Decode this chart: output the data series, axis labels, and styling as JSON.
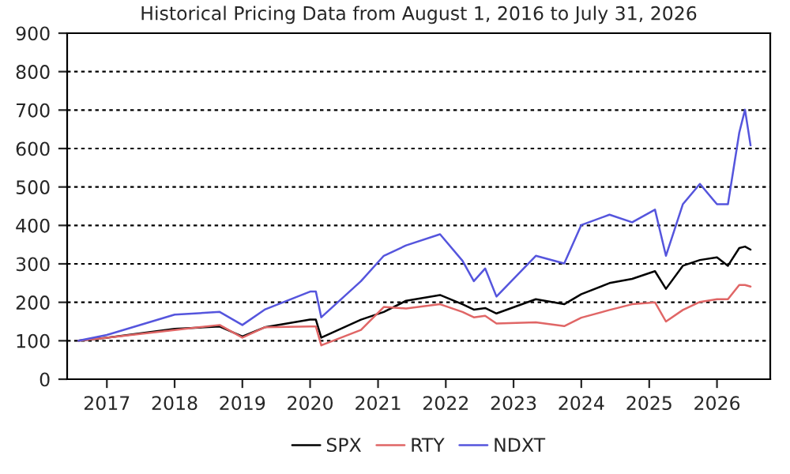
{
  "chart_data": {
    "type": "line",
    "title": "Historical Pricing Data from August 1, 2016 to July 31, 2026",
    "x": [
      "2016-08",
      "2017-01",
      "2018-01",
      "2018-09",
      "2019-01",
      "2019-05",
      "2020-01",
      "2020-02",
      "2020-03",
      "2020-10",
      "2021-02",
      "2021-06",
      "2021-12",
      "2022-04",
      "2022-06",
      "2022-08",
      "2022-10",
      "2023-05",
      "2023-10",
      "2024-01",
      "2024-06",
      "2024-10",
      "2025-02",
      "2025-04",
      "2025-07",
      "2025-10",
      "2026-01",
      "2026-03",
      "2026-05",
      "2026-06",
      "2026-07"
    ],
    "series": [
      {
        "name": "SPX",
        "color": "#000000",
        "values": [
          100,
          108,
          131,
          137,
          111,
          135,
          155,
          155,
          108,
          155,
          175,
          204,
          219,
          195,
          181,
          185,
          171,
          208,
          195,
          221,
          250,
          261,
          281,
          235,
          295,
          310,
          317,
          295,
          341,
          345,
          337
        ]
      },
      {
        "name": "RTY",
        "color": "#e06666",
        "values": [
          100,
          108,
          128,
          141,
          108,
          135,
          137,
          137,
          88,
          128,
          188,
          184,
          195,
          175,
          161,
          165,
          145,
          148,
          138,
          160,
          180,
          195,
          200,
          150,
          180,
          201,
          208,
          208,
          245,
          245,
          241
        ]
      },
      {
        "name": "NDXT",
        "color": "#5555dd",
        "values": [
          100,
          115,
          168,
          175,
          141,
          181,
          228,
          228,
          161,
          255,
          321,
          348,
          377,
          308,
          255,
          288,
          215,
          321,
          301,
          401,
          428,
          408,
          441,
          321,
          455,
          508,
          455,
          455,
          641,
          701,
          608
        ]
      }
    ],
    "xlim": [
      "2016-06",
      "2026-10-15"
    ],
    "xticks": [
      "2017",
      "2018",
      "2019",
      "2020",
      "2021",
      "2022",
      "2023",
      "2024",
      "2025",
      "2026"
    ],
    "ylim": [
      0,
      900
    ],
    "yticks": [
      0,
      100,
      200,
      300,
      400,
      500,
      600,
      700,
      800,
      900
    ],
    "grid": "y",
    "legend": "bottom",
    "marker": "none",
    "line_style": "solid"
  }
}
